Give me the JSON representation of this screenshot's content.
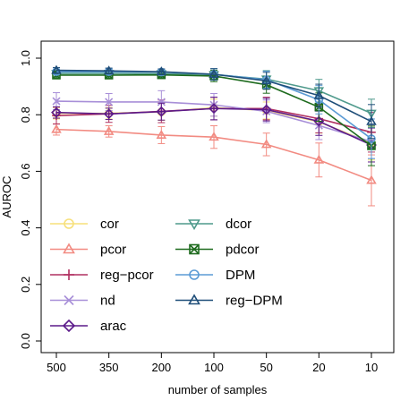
{
  "chart_data": {
    "type": "line",
    "xlabel": "number of samples",
    "ylabel": "AUROC",
    "categories": [
      "500",
      "350",
      "200",
      "100",
      "50",
      "20",
      "10"
    ],
    "ylim": [
      0.0,
      1.0
    ],
    "yticks": [
      "0.0",
      "0.2",
      "0.4",
      "0.6",
      "0.8",
      "1.0"
    ],
    "ytick_values": [
      0.0,
      0.2,
      0.4,
      0.6,
      0.8,
      1.0
    ],
    "grid": false,
    "legend_position": "bottom-left",
    "series": [
      {
        "name": "cor",
        "color": "#f7e07a",
        "marker": "circle",
        "values": [
          0.805,
          0.805,
          0.81,
          0.825,
          0.815,
          0.775,
          0.7
        ],
        "err": [
          0.02,
          0.02,
          0.03,
          0.03,
          0.03,
          0.04,
          0.06
        ]
      },
      {
        "name": "pcor",
        "color": "#f28b82",
        "marker": "triangle-up",
        "values": [
          0.748,
          0.741,
          0.728,
          0.721,
          0.695,
          0.64,
          0.568
        ],
        "err": [
          0.02,
          0.02,
          0.03,
          0.04,
          0.04,
          0.06,
          0.09
        ]
      },
      {
        "name": "reg−pcor",
        "color": "#b03060",
        "marker": "plus",
        "values": [
          0.797,
          0.803,
          0.812,
          0.822,
          0.822,
          0.786,
          0.738
        ],
        "err": [
          0.03,
          0.03,
          0.04,
          0.04,
          0.04,
          0.05,
          0.07
        ]
      },
      {
        "name": "nd",
        "color": "#a88fd8",
        "marker": "x",
        "values": [
          0.848,
          0.845,
          0.845,
          0.835,
          0.812,
          0.762,
          0.705
        ],
        "err": [
          0.03,
          0.03,
          0.04,
          0.04,
          0.04,
          0.05,
          0.06
        ]
      },
      {
        "name": "arac",
        "color": "#5b1a8a",
        "marker": "diamond",
        "values": [
          0.808,
          0.803,
          0.811,
          0.822,
          0.818,
          0.777,
          0.693
        ],
        "err": [
          0.02,
          0.02,
          0.03,
          0.04,
          0.04,
          0.05,
          0.06
        ]
      },
      {
        "name": "dcor",
        "color": "#4f9a8c",
        "marker": "triangle-down",
        "values": [
          0.946,
          0.946,
          0.945,
          0.942,
          0.926,
          0.885,
          0.805
        ],
        "err": [
          0.01,
          0.01,
          0.01,
          0.02,
          0.03,
          0.04,
          0.05
        ]
      },
      {
        "name": "pdcor",
        "color": "#1e6b1e",
        "marker": "boxed-x",
        "values": [
          0.94,
          0.94,
          0.941,
          0.937,
          0.906,
          0.827,
          0.69
        ],
        "err": [
          0.01,
          0.01,
          0.01,
          0.02,
          0.03,
          0.05,
          0.07
        ]
      },
      {
        "name": "DPM",
        "color": "#5b9bd5",
        "marker": "circle",
        "values": [
          0.952,
          0.952,
          0.951,
          0.943,
          0.924,
          0.853,
          0.715
        ],
        "err": [
          0.01,
          0.01,
          0.01,
          0.02,
          0.03,
          0.05,
          0.07
        ]
      },
      {
        "name": "reg−DPM",
        "color": "#1f4e79",
        "marker": "triangle-up",
        "values": [
          0.957,
          0.955,
          0.952,
          0.943,
          0.92,
          0.868,
          0.776
        ],
        "err": [
          0.01,
          0.01,
          0.01,
          0.02,
          0.03,
          0.04,
          0.06
        ]
      }
    ]
  }
}
